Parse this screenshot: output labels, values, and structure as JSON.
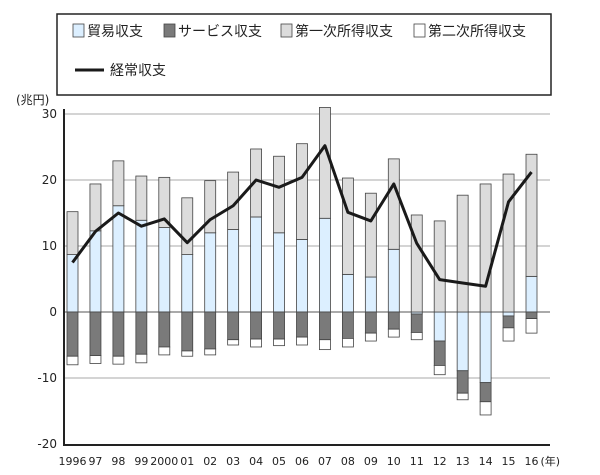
{
  "chart_data": {
    "type": "bar",
    "stacked": true,
    "unit_label": "(兆円)",
    "x_unit_label": "(年)",
    "categories": [
      "1996",
      "97",
      "98",
      "99",
      "2000",
      "01",
      "02",
      "03",
      "04",
      "05",
      "06",
      "07",
      "08",
      "09",
      "10",
      "11",
      "12",
      "13",
      "14",
      "15",
      "16"
    ],
    "ylim": [
      -20,
      30
    ],
    "yticks": [
      30,
      20,
      10,
      0,
      -10,
      -20
    ],
    "grid": true,
    "legend_position": "top",
    "series": [
      {
        "name": "貿易収支",
        "color": "#dcefff",
        "values": [
          8.7,
          12.3,
          16.1,
          13.9,
          12.8,
          8.7,
          12.0,
          12.5,
          14.4,
          12.0,
          11.0,
          14.2,
          5.7,
          5.3,
          9.5,
          -0.3,
          -4.4,
          -8.9,
          -10.7,
          -0.6,
          5.4
        ]
      },
      {
        "name": "サービス収支",
        "color": "#7a7a7a",
        "values": [
          -6.7,
          -6.6,
          -6.7,
          -6.4,
          -5.3,
          -5.9,
          -5.6,
          -4.2,
          -4.1,
          -4.1,
          -3.8,
          -4.2,
          -4.0,
          -3.2,
          -2.6,
          -2.8,
          -3.7,
          -3.4,
          -2.9,
          -1.8,
          -1.0
        ]
      },
      {
        "name": "第一次所得収支",
        "color": "#dcdcdc",
        "values": [
          6.5,
          7.1,
          6.8,
          6.7,
          7.6,
          8.6,
          7.9,
          8.7,
          10.3,
          11.6,
          14.5,
          16.8,
          14.6,
          12.7,
          13.7,
          14.7,
          13.8,
          17.7,
          19.4,
          20.9,
          18.5
        ]
      },
      {
        "name": "第二次所得収支",
        "color": "#ffffff",
        "values": [
          -1.3,
          -1.2,
          -1.2,
          -1.3,
          -1.2,
          -0.8,
          -0.9,
          -0.8,
          -1.2,
          -1.0,
          -1.2,
          -1.5,
          -1.3,
          -1.2,
          -1.2,
          -1.1,
          -1.4,
          -1.0,
          -2.0,
          -2.0,
          -2.2
        ]
      },
      {
        "name": "経常収支",
        "type": "line",
        "color": "#1a1a1a",
        "values": [
          7.5,
          12.2,
          15.0,
          13.0,
          14.1,
          10.5,
          14.0,
          16.1,
          20.0,
          18.9,
          20.4,
          25.2,
          15.1,
          13.8,
          19.4,
          10.4,
          4.9,
          4.4,
          3.9,
          16.7,
          21.2
        ]
      }
    ]
  }
}
